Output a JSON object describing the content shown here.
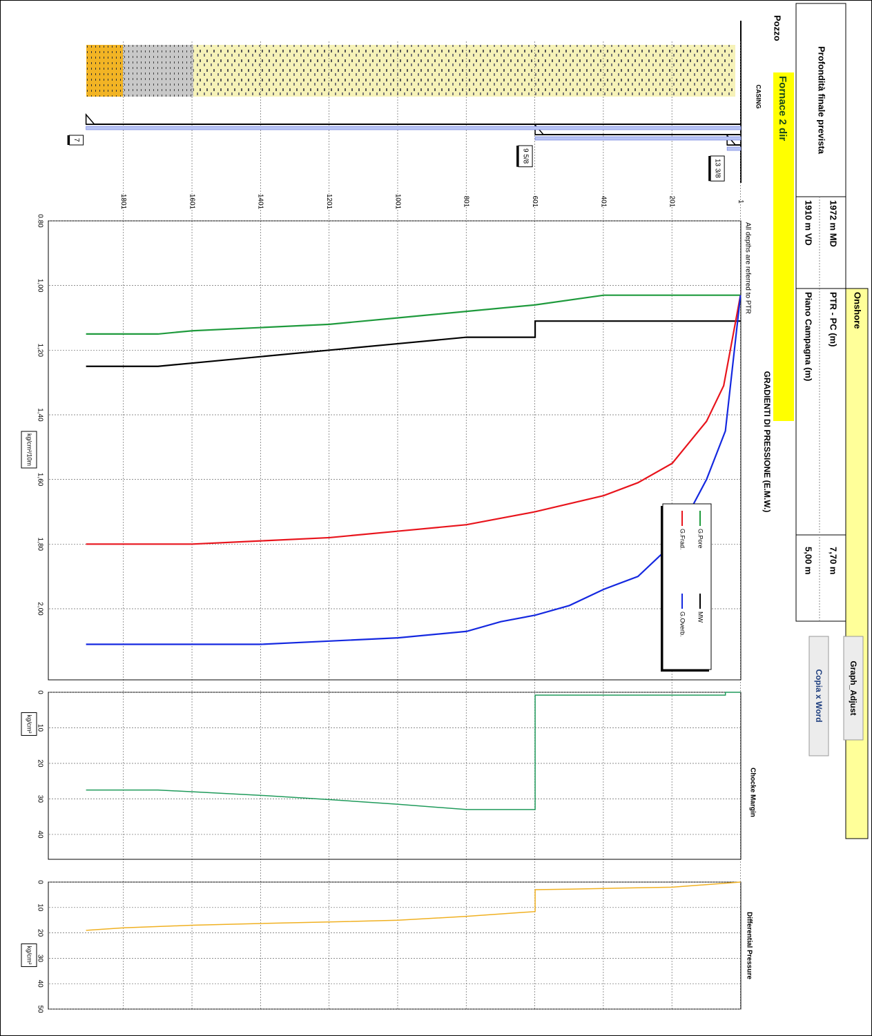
{
  "header": {
    "final_depth_label": "Profondità finale prevista",
    "md": "1972 m MD",
    "vd": "1910 m VD",
    "site": "Onshore",
    "ptr_pc_label": "PTR - PC (m)",
    "ptr_pc_value": "7,70 m",
    "ground_label": "Piano Campagna (m)",
    "ground_value": "5,00 m"
  },
  "buttons": [
    "Graph_Adjust",
    "Copia x Word"
  ],
  "well": {
    "title": "Pozzo",
    "name": "Fornace 2 dir",
    "casing_title": "CASING",
    "casings": [
      {
        "label": "13 3/8",
        "depth": 40
      },
      {
        "label": "9 5/8",
        "depth": 600
      },
      {
        "label": "7",
        "depth": 1910
      }
    ]
  },
  "note": "All depths are referred to PTR",
  "chart_data": [
    {
      "type": "line",
      "title": "GRADIENTI DI PRESSIONE (E.M.W.)",
      "y_label": "kg/cm²/10m",
      "xlim": [
        0,
        2020
      ],
      "xticks": [
        1,
        201,
        401,
        601,
        801,
        1001,
        1201,
        1401,
        1601,
        1801
      ],
      "ylim": [
        0.8,
        2.22
      ],
      "yticks": [
        {
          "value": 0.8,
          "label": "0.80"
        },
        {
          "value": 1.0,
          "label": "1,00"
        },
        {
          "value": 1.2,
          "label": "1,20"
        },
        {
          "value": 1.4,
          "label": "1,40"
        },
        {
          "value": 1.6,
          "label": "1,60"
        },
        {
          "value": 1.8,
          "label": "1,80"
        },
        {
          "value": 2.0,
          "label": "2,00"
        }
      ],
      "grid": true,
      "legend": "upper right",
      "series": [
        {
          "name": "G.Pore",
          "color": "#1e9a3c",
          "x": [
            1,
            400,
            600,
            800,
            1000,
            1200,
            1400,
            1600,
            1700,
            1910
          ],
          "values": [
            1.03,
            1.03,
            1.06,
            1.08,
            1.1,
            1.12,
            1.13,
            1.14,
            1.15,
            1.15
          ]
        },
        {
          "name": "MW",
          "color": "#000000",
          "x": [
            1,
            600,
            600,
            800,
            1000,
            1200,
            1400,
            1600,
            1700,
            1910
          ],
          "values": [
            1.11,
            1.11,
            1.16,
            1.16,
            1.18,
            1.2,
            1.22,
            1.24,
            1.25,
            1.25
          ]
        },
        {
          "name": "G.Frad.",
          "color": "#e8141c",
          "x": [
            1,
            50,
            100,
            200,
            300,
            400,
            600,
            700,
            800,
            1000,
            1200,
            1400,
            1600,
            1700,
            1910
          ],
          "values": [
            1.03,
            1.31,
            1.42,
            1.55,
            1.61,
            1.65,
            1.7,
            1.72,
            1.74,
            1.76,
            1.78,
            1.79,
            1.8,
            1.8,
            1.8
          ]
        },
        {
          "name": "G.Overb.",
          "color": "#1428e0",
          "x": [
            1,
            45,
            100,
            200,
            300,
            400,
            500,
            600,
            700,
            800,
            1000,
            1200,
            1400,
            1600,
            1700,
            1910
          ],
          "values": [
            1.03,
            1.45,
            1.6,
            1.8,
            1.9,
            1.94,
            1.99,
            2.02,
            2.04,
            2.07,
            2.09,
            2.1,
            2.11,
            2.11,
            2.11,
            2.11
          ]
        }
      ]
    },
    {
      "type": "line",
      "title": "Chocke Margin",
      "y_label": "kg/cm²",
      "xlim": [
        0,
        2020
      ],
      "ylim": [
        0,
        47
      ],
      "yticks": [
        0,
        10,
        20,
        30,
        40
      ],
      "grid": true,
      "series": [
        {
          "name": "Chocke Margin",
          "color": "#1e9a5a",
          "x": [
            1,
            45,
            45,
            600,
            600,
            800,
            1000,
            1200,
            1400,
            1600,
            1700,
            1910
          ],
          "values": [
            0,
            0,
            0.8,
            0.8,
            33,
            33,
            31.5,
            30.2,
            29,
            28,
            27.5,
            27.5
          ]
        }
      ]
    },
    {
      "type": "line",
      "title": "Differential Pressure",
      "y_label": "kg/cm²",
      "xlim": [
        0,
        2020
      ],
      "ylim": [
        0,
        50
      ],
      "yticks": [
        0,
        10,
        20,
        30,
        40,
        50
      ],
      "grid": true,
      "series": [
        {
          "name": "Differential Pressure",
          "color": "#f0b020",
          "x": [
            1,
            200,
            400,
            500,
            600,
            600,
            800,
            1000,
            1200,
            1400,
            1600,
            1700,
            1800,
            1910
          ],
          "values": [
            0,
            2,
            2.5,
            2.8,
            3,
            11.6,
            13.5,
            15,
            15.7,
            16.3,
            17,
            17.5,
            18,
            19
          ]
        }
      ]
    }
  ]
}
